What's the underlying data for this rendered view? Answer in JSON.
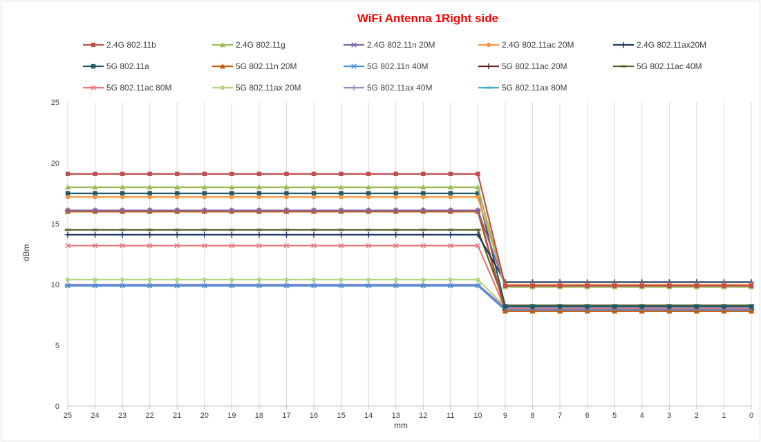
{
  "chart_data": {
    "type": "line",
    "title": "WiFi Antenna 1Right side",
    "xlabel": "mm",
    "ylabel": "dBm",
    "x": [
      25,
      24,
      23,
      22,
      21,
      20,
      19,
      18,
      17,
      16,
      15,
      14,
      13,
      12,
      11,
      10,
      9,
      8,
      7,
      6,
      5,
      4,
      3,
      2,
      1,
      0
    ],
    "ylim": [
      0,
      25
    ],
    "yticks": [
      0,
      5,
      10,
      15,
      20,
      25
    ],
    "grid": "vertical",
    "legend_position": "top",
    "series": [
      {
        "name": "2.4G 802.11b",
        "color": "#c0504d",
        "marker": "square",
        "left": 19.1,
        "right": 9.9
      },
      {
        "name": "2.4G 802.11g",
        "color": "#9bbb59",
        "marker": "triangle",
        "left": 18.0,
        "right": 9.8
      },
      {
        "name": "2.4G 802.11n 20M",
        "color": "#8064a2",
        "marker": "x",
        "left": 16.1,
        "right": 9.9
      },
      {
        "name": "2.4G 802.11ac 20M",
        "color": "#f79646",
        "marker": "circle",
        "left": 17.2,
        "right": 10.0
      },
      {
        "name": "2.4G 802.11ax20M",
        "color": "#1f3864",
        "marker": "plus",
        "left": 14.1,
        "right": 10.2
      },
      {
        "name": "5G 802.11a",
        "color": "#215967",
        "marker": "square",
        "left": 17.5,
        "right": 8.2
      },
      {
        "name": "5G 802.11n 20M",
        "color": "#c55a11",
        "marker": "triangle",
        "left": 16.0,
        "right": 7.8
      },
      {
        "name": "5G 802.11n 40M",
        "color": "#4a90d9",
        "marker": "x",
        "left": 9.9,
        "right": 7.9
      },
      {
        "name": "5G 802.11ac 20M",
        "color": "#632523",
        "marker": "plus",
        "left": 16.1,
        "right": 7.9
      },
      {
        "name": "5G 802.11ac 40M",
        "color": "#4f6228",
        "marker": "dash",
        "left": 14.5,
        "right": 8.3
      },
      {
        "name": "5G 802.11ac 80M",
        "color": "#e6777a",
        "marker": "x",
        "left": 13.2,
        "right": 8.0
      },
      {
        "name": "5G 802.11ax 20M",
        "color": "#b3d67f",
        "marker": "circle",
        "left": 10.4,
        "right": 8.2
      },
      {
        "name": "5G 802.11ax 40M",
        "color": "#9f86c0",
        "marker": "plus",
        "left": 10.0,
        "right": 8.1
      },
      {
        "name": "5G 802.11ax 80M",
        "color": "#4bacc6",
        "marker": "dash",
        "left": 9.9,
        "right": 8.0
      }
    ]
  }
}
